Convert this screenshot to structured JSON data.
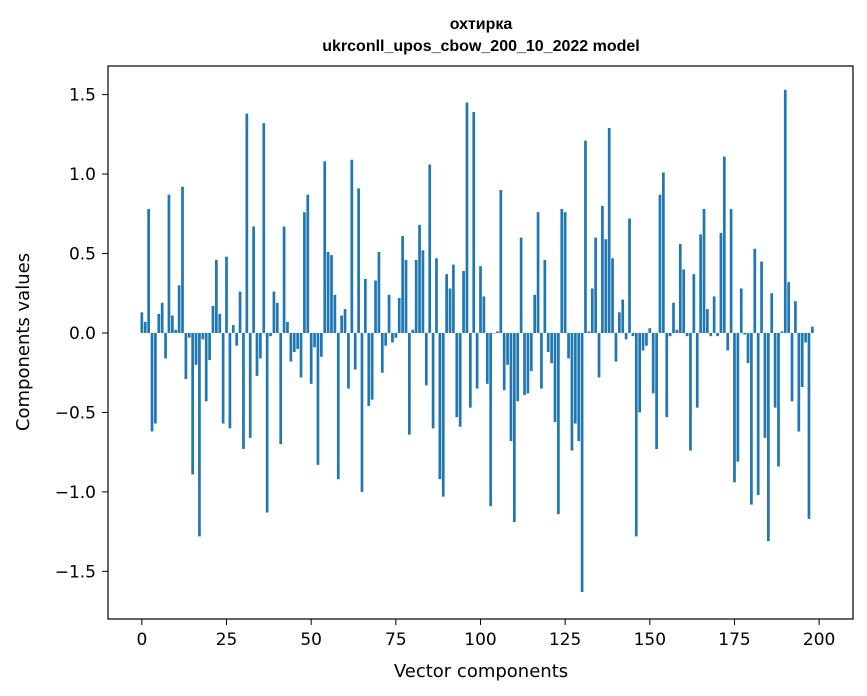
{
  "chart_data": {
    "type": "bar",
    "title": "охтирка",
    "subtitle": "ukrconll_upos_cbow_200_10_2022 model",
    "xlabel": "Vector components",
    "ylabel": "Components values",
    "xlim": [
      -10,
      210
    ],
    "ylim": [
      -1.8,
      1.68
    ],
    "xticks": [
      0,
      25,
      50,
      75,
      100,
      125,
      150,
      175,
      200
    ],
    "yticks": [
      1.5,
      1.0,
      0.5,
      0.0,
      -0.5,
      -1.0,
      -1.5
    ],
    "ytick_labels": [
      "1.5",
      "1.0",
      "0.5",
      "0.0",
      "−0.5",
      "−1.0",
      "−1.5"
    ],
    "grid": false,
    "color": "#1f77b4",
    "values": [
      0.13,
      0.07,
      0.78,
      -0.62,
      -0.57,
      0.12,
      0.19,
      -0.16,
      0.87,
      0.11,
      0.02,
      0.3,
      0.92,
      -0.29,
      -0.03,
      -0.89,
      -0.2,
      -1.28,
      -0.04,
      -0.43,
      -0.17,
      0.17,
      0.46,
      0.12,
      -0.57,
      0.48,
      -0.6,
      0.05,
      -0.08,
      0.26,
      -0.73,
      1.38,
      -0.66,
      0.67,
      -0.27,
      -0.16,
      1.32,
      -1.13,
      -0.02,
      0.26,
      0.19,
      -0.7,
      0.67,
      0.07,
      -0.18,
      -0.12,
      -0.1,
      -0.28,
      0.76,
      0.87,
      -0.32,
      -0.09,
      -0.83,
      -0.15,
      1.08,
      0.51,
      0.49,
      0.24,
      -0.92,
      0.11,
      0.15,
      -0.35,
      1.09,
      -0.23,
      0.91,
      -1.0,
      0.34,
      -0.46,
      -0.42,
      0.33,
      0.51,
      -0.25,
      -0.08,
      0.24,
      -0.06,
      -0.03,
      0.22,
      0.61,
      0.46,
      -0.64,
      0.02,
      0.46,
      0.68,
      0.52,
      -0.33,
      1.06,
      -0.6,
      0.47,
      -0.92,
      -1.03,
      0.37,
      0.28,
      0.43,
      -0.53,
      -0.59,
      0.39,
      1.45,
      -0.47,
      1.39,
      -0.35,
      0.42,
      0.23,
      -0.32,
      -1.09,
      0.0,
      0.01,
      0.9,
      -0.36,
      -0.2,
      -0.68,
      -1.19,
      -0.43,
      0.6,
      -0.39,
      -0.38,
      -0.24,
      0.24,
      0.76,
      -0.35,
      0.46,
      -0.12,
      -0.19,
      -0.56,
      -1.14,
      0.78,
      0.76,
      -0.16,
      -0.74,
      -0.57,
      -0.68,
      -1.63,
      1.21,
      0.01,
      0.28,
      0.6,
      -0.28,
      0.8,
      0.59,
      1.29,
      0.47,
      -0.18,
      0.13,
      0.21,
      -0.04,
      0.72,
      -0.02,
      -1.28,
      -0.5,
      -0.11,
      -0.08,
      0.03,
      -0.38,
      -0.73,
      0.87,
      1.01,
      -0.53,
      -0.02,
      0.19,
      0.02,
      0.56,
      0.4,
      -0.02,
      -0.74,
      0.37,
      -0.47,
      0.62,
      0.78,
      0.15,
      -0.02,
      0.23,
      -0.02,
      0.63,
      1.11,
      -0.11,
      0.78,
      -0.94,
      -0.81,
      0.28,
      -0.01,
      -0.19,
      -1.08,
      0.53,
      -1.02,
      0.45,
      -0.66,
      -1.31,
      0.25,
      -0.47,
      -0.84,
      0.01,
      1.53,
      0.32,
      -0.43,
      0.2,
      -0.62,
      -0.34,
      -0.06,
      -1.17,
      0.04
    ]
  }
}
